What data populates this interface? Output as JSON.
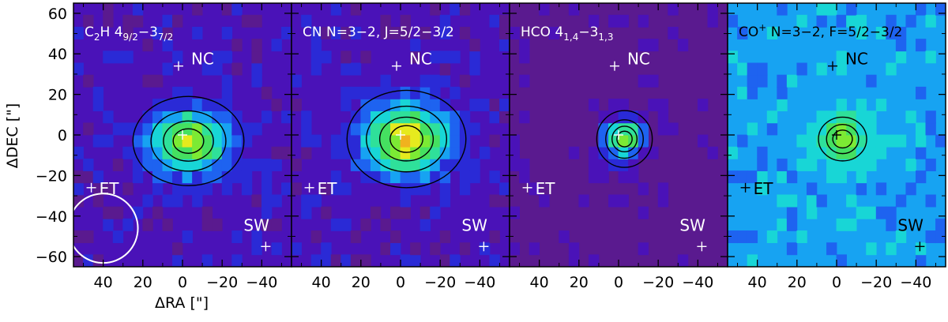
{
  "figure": {
    "ylabel": "ΔDEC [\"]",
    "xlabel": "ΔRA [\"]"
  },
  "colors": {
    "background": "#ffffff",
    "frame": "#000000",
    "colormap": [
      "#5a1a8f",
      "#4a12b8",
      "#2a2ad6",
      "#1e63f0",
      "#17a3f2",
      "#18d6d6",
      "#2fe09a",
      "#45e060",
      "#7cea34",
      "#e6ea1e",
      "#f0b21e",
      "#f07a1e"
    ]
  },
  "chart_data": [
    {
      "type": "heatmap",
      "title": "C2H 4_{9/2}-3_{7/2}",
      "title_parts": {
        "species": "C",
        "sub1": "2",
        "mid": "H 4",
        "sub2": "9/2",
        "dash": "−3",
        "sub3": "7/2"
      },
      "xlabel": "ΔRA [\"]",
      "ylabel": "ΔDEC [\"]",
      "xlim": [
        55,
        -55
      ],
      "ylim": [
        -65,
        65
      ],
      "x_ticks": [
        40,
        20,
        0,
        -20,
        -40
      ],
      "y_ticks": [
        60,
        40,
        20,
        0,
        -20,
        -40,
        -60
      ],
      "background_level": 1,
      "peak": {
        "x": -3,
        "y": -3,
        "amp": 7.6,
        "sigma_x": 14,
        "sigma_y": 11
      },
      "markers": [
        {
          "label": "NC",
          "x": 2,
          "y": 34
        },
        {
          "label": "ET",
          "x": 46,
          "y": -26
        },
        {
          "label": "SW",
          "x": -42,
          "y": -55
        },
        {
          "label": "",
          "x": 0,
          "y": 0
        }
      ],
      "beam": {
        "x": 40,
        "y": -46,
        "diameter": 14
      }
    },
    {
      "type": "heatmap",
      "title": "CN N=3-2, J=5/2-3/2",
      "title_parts": {
        "text": "CN N=3−2, J=5/2−3/2"
      },
      "xlim": [
        55,
        -55
      ],
      "ylim": [
        -65,
        65
      ],
      "x_ticks": [
        40,
        20,
        0,
        -20,
        -40
      ],
      "background_level": 1,
      "peak": {
        "x": -3,
        "y": -2,
        "amp": 8.5,
        "sigma_x": 15,
        "sigma_y": 12
      },
      "markers": [
        {
          "label": "NC",
          "x": 2,
          "y": 34
        },
        {
          "label": "ET",
          "x": 46,
          "y": -26
        },
        {
          "label": "SW",
          "x": -42,
          "y": -55
        },
        {
          "label": "",
          "x": 0,
          "y": 0
        }
      ]
    },
    {
      "type": "heatmap",
      "title": "HCO 4_{1,4}-3_{1,3}",
      "title_parts": {
        "species": "HCO 4",
        "sub1": "1,4",
        "dash": "−3",
        "sub2": "1,3"
      },
      "xlim": [
        55,
        -55
      ],
      "ylim": [
        -65,
        65
      ],
      "x_ticks": [
        40,
        20,
        0,
        -20,
        -40
      ],
      "background_level": 0,
      "peak": {
        "x": -3,
        "y": -2,
        "amp": 8.2,
        "sigma_x": 7,
        "sigma_y": 7
      },
      "markers": [
        {
          "label": "NC",
          "x": 2,
          "y": 34
        },
        {
          "label": "ET",
          "x": 46,
          "y": -26
        },
        {
          "label": "SW",
          "x": -42,
          "y": -55
        },
        {
          "label": "",
          "x": 0,
          "y": 0
        }
      ]
    },
    {
      "type": "heatmap",
      "title": "CO+ N=3-2, F=5/2-3/2",
      "title_parts": {
        "species": "CO",
        "sup": "+",
        "rest": " N=3−2, F=5/2−3/2"
      },
      "xlim": [
        55,
        -55
      ],
      "ylim": [
        -65,
        65
      ],
      "x_ticks": [
        40,
        20,
        0,
        -20,
        -40
      ],
      "background_level": 4,
      "peak": {
        "x": -3,
        "y": -2,
        "amp": 4.4,
        "sigma_x": 9,
        "sigma_y": 8
      },
      "markers": [
        {
          "label": "NC",
          "x": 2,
          "y": 34
        },
        {
          "label": "ET",
          "x": 46,
          "y": -26
        },
        {
          "label": "SW",
          "x": -42,
          "y": -55
        },
        {
          "label": "",
          "x": 0,
          "y": 0
        }
      ],
      "marker_color": "#000000"
    }
  ]
}
